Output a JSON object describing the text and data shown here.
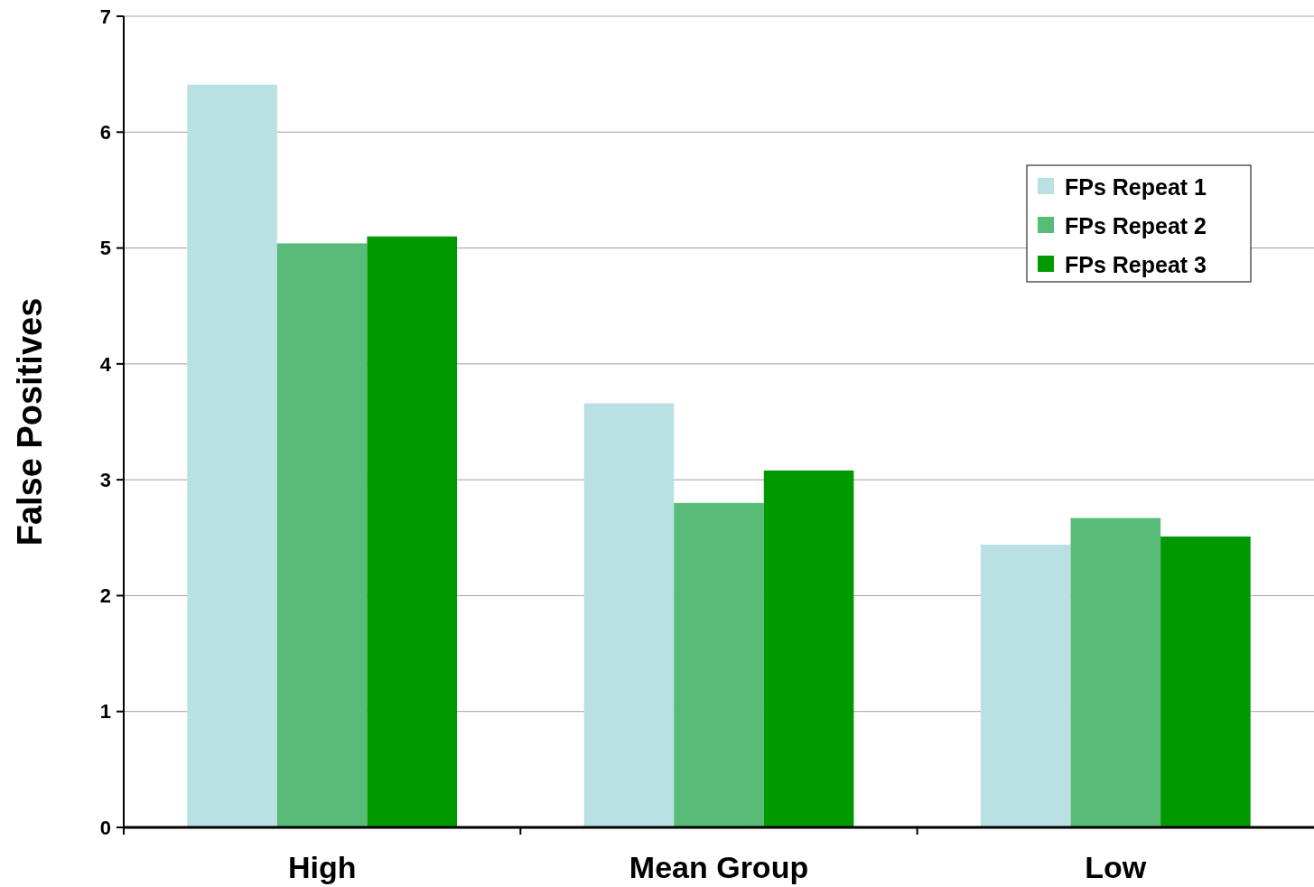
{
  "chart_data": {
    "type": "bar",
    "ylabel": "False Positives",
    "categories": [
      "High",
      "Mean Group",
      "Low"
    ],
    "series": [
      {
        "name": "FPs Repeat 1",
        "color": "#b9e0e3",
        "values": [
          6.41,
          3.66,
          2.44
        ]
      },
      {
        "name": "FPs Repeat 2",
        "color": "#58bc78",
        "values": [
          5.04,
          2.8,
          2.67
        ]
      },
      {
        "name": "FPs Repeat 3",
        "color": "#009900",
        "values": [
          5.1,
          3.08,
          2.51
        ]
      }
    ],
    "ylim": [
      0,
      7
    ],
    "yticks": [
      0,
      1,
      2,
      3,
      4,
      5,
      6,
      7
    ],
    "grid": "y",
    "legend": "top right"
  }
}
